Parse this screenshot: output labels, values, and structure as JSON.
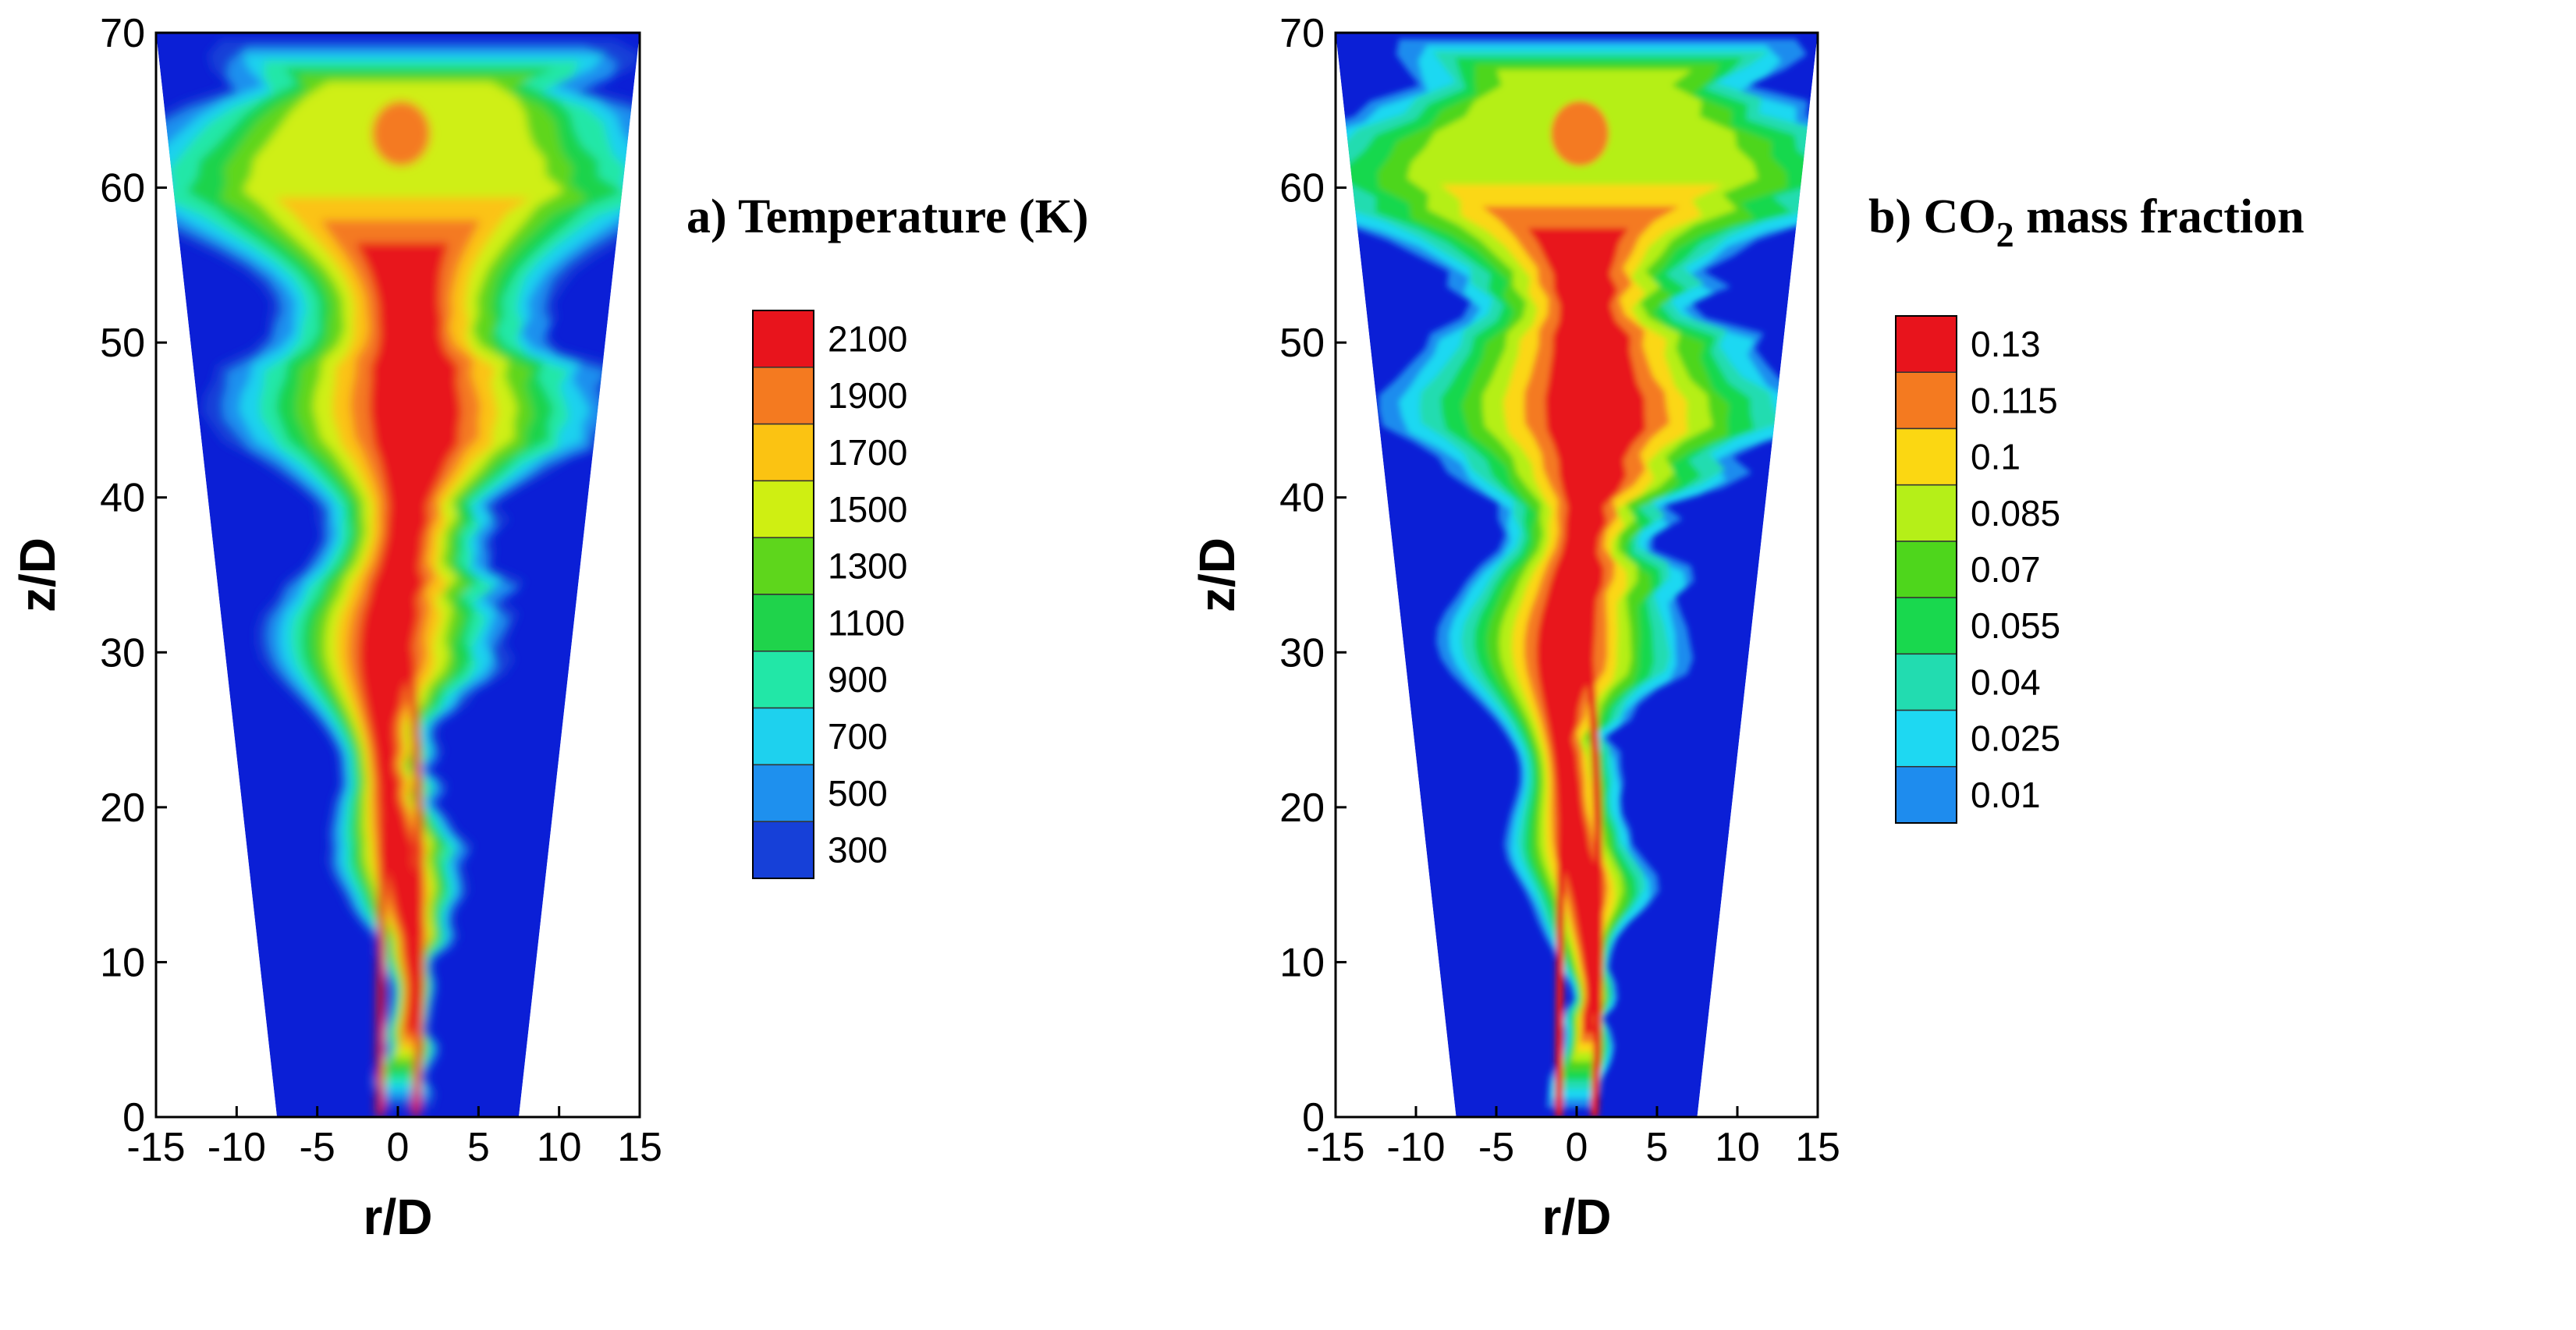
{
  "chart_data": [
    {
      "type": "heatmap",
      "title": "a) Temperature (K)",
      "xlabel": "r/D",
      "ylabel": "z/D",
      "xlim": [
        -15,
        15
      ],
      "ylim": [
        0,
        70
      ],
      "x_ticks": [
        "-15",
        "-10",
        "-5",
        "0",
        "5",
        "10",
        "15"
      ],
      "y_ticks": [
        "0",
        "10",
        "20",
        "30",
        "40",
        "50",
        "60",
        "70"
      ],
      "domain_half_width_at_z0": 7.5,
      "domain_half_width_at_z70": 15,
      "legend_levels": [
        "2100",
        "1900",
        "1700",
        "1500",
        "1300",
        "1100",
        "900",
        "700",
        "500",
        "300"
      ],
      "legend_colors": [
        "#e8141c",
        "#f47a20",
        "#fbc312",
        "#cfef12",
        "#5ed61c",
        "#1fd34b",
        "#22e7a7",
        "#1ed1ee",
        "#1e90ee",
        "#1640d8",
        "#0b1fd6"
      ]
    },
    {
      "type": "heatmap",
      "title_main": "b) CO",
      "title_sub": "2",
      "title_rest": " mass fraction",
      "xlabel": "r/D",
      "ylabel": "z/D",
      "xlim": [
        -15,
        15
      ],
      "ylim": [
        0,
        70
      ],
      "x_ticks": [
        "-15",
        "-10",
        "-5",
        "0",
        "5",
        "10",
        "15"
      ],
      "y_ticks": [
        "0",
        "10",
        "20",
        "30",
        "40",
        "50",
        "60",
        "70"
      ],
      "domain_half_width_at_z0": 7.5,
      "domain_half_width_at_z70": 15,
      "legend_levels": [
        "0.13",
        "0.115",
        "0.1",
        "0.085",
        "0.07",
        "0.055",
        "0.04",
        "0.025",
        "0.01"
      ],
      "legend_colors": [
        "#e8141c",
        "#f47a20",
        "#fbd712",
        "#b5ef18",
        "#4ed61c",
        "#19d84e",
        "#22dcb0",
        "#1ed8f2",
        "#1e8cee",
        "#0b1fd6"
      ]
    }
  ]
}
